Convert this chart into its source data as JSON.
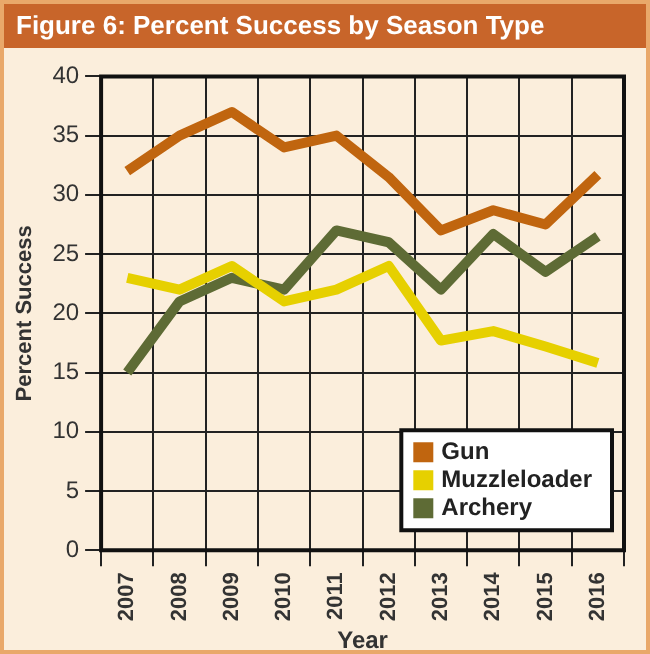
{
  "chart_data": {
    "type": "line",
    "title": "Figure 6: Percent Success by Season Type",
    "xlabel": "Year",
    "ylabel": "Percent Success",
    "categories": [
      "2007",
      "2008",
      "2009",
      "2010",
      "2011",
      "2012",
      "2013",
      "2014",
      "2015",
      "2016"
    ],
    "series": [
      {
        "name": "Gun",
        "color": "#c0650f",
        "values": [
          32,
          35,
          37,
          34,
          35,
          31.5,
          27,
          28.7,
          27.5,
          31.7
        ]
      },
      {
        "name": "Muzzleloader",
        "color": "#e6d000",
        "values": [
          23,
          22,
          24,
          21,
          22,
          24,
          17.7,
          18.5,
          17.2,
          15.8
        ]
      },
      {
        "name": "Archery",
        "color": "#5e6b35",
        "values": [
          15,
          21,
          23,
          22,
          27,
          26,
          22,
          26.7,
          23.5,
          26.5
        ]
      }
    ],
    "ylim": [
      0,
      40
    ],
    "yticks": [
      0,
      5,
      10,
      15,
      20,
      25,
      30,
      35,
      40
    ],
    "grid": true,
    "legend": "bottom right",
    "marker": "none",
    "line_style": "solid"
  }
}
